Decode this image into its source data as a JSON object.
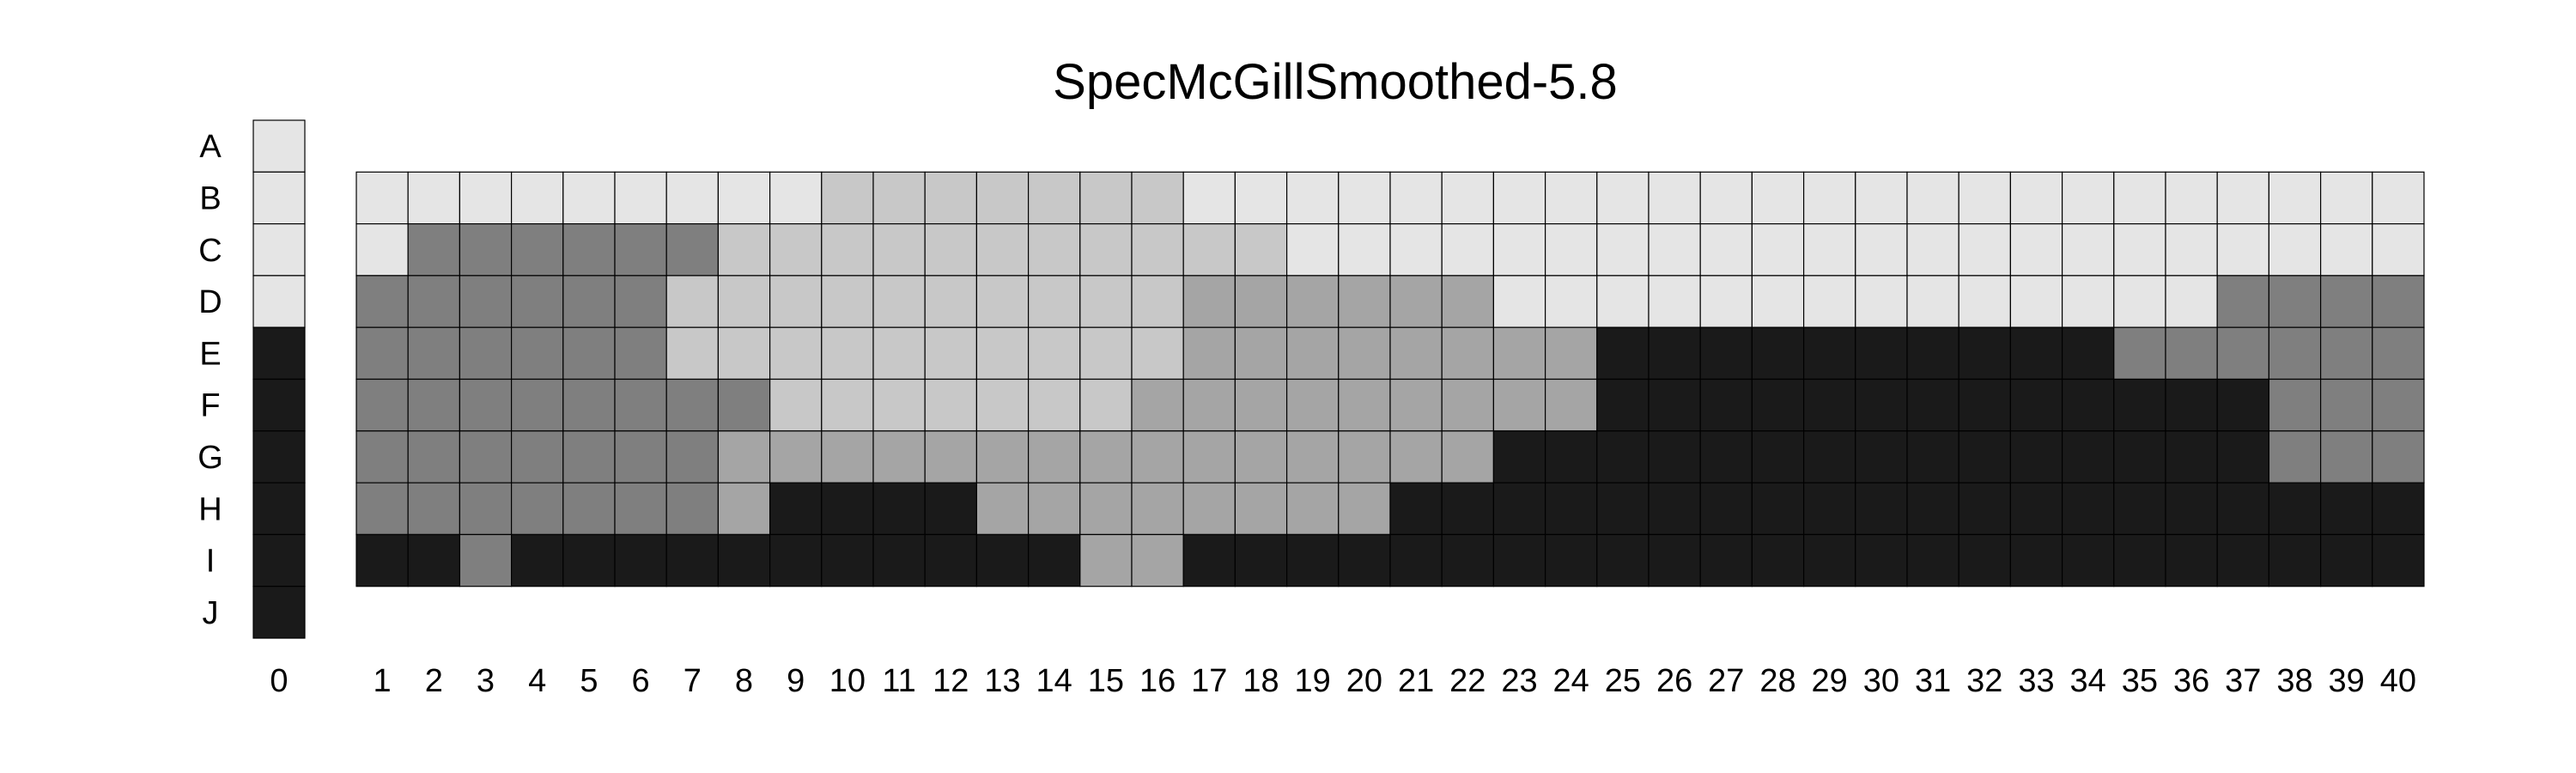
{
  "chart_data": {
    "type": "heatmap",
    "title": "SpecMcGillSmoothed-5.8",
    "rows": [
      "A",
      "B",
      "C",
      "D",
      "E",
      "F",
      "G",
      "H",
      "I",
      "J"
    ],
    "column_zero_label": "0",
    "columns": [
      "1",
      "2",
      "3",
      "4",
      "5",
      "6",
      "7",
      "8",
      "9",
      "10",
      "11",
      "12",
      "13",
      "14",
      "15",
      "16",
      "17",
      "18",
      "19",
      "20",
      "21",
      "22",
      "23",
      "24",
      "25",
      "26",
      "27",
      "28",
      "29",
      "30",
      "31",
      "32",
      "33",
      "34",
      "35",
      "36",
      "37",
      "38",
      "39",
      "40"
    ],
    "colors": {
      "0": "#e5e5e5",
      "1": "#c8c8c8",
      "2": "#a5a5a5",
      "3": "#7f7f7f",
      "4": "#1a1a1a"
    },
    "column_zero_values": [
      0,
      0,
      0,
      0,
      4,
      4,
      4,
      4,
      4,
      4
    ],
    "main_row_start": "B",
    "values": [
      [
        0,
        0,
        0,
        0,
        0,
        0,
        0,
        0,
        0,
        1,
        1,
        1,
        1,
        1,
        1,
        1,
        0,
        0,
        0,
        0,
        0,
        0,
        0,
        0,
        0,
        0,
        0,
        0,
        0,
        0,
        0,
        0,
        0,
        0,
        0,
        0,
        0,
        0,
        0,
        0
      ],
      [
        0,
        3,
        3,
        3,
        3,
        3,
        3,
        1,
        1,
        1,
        1,
        1,
        1,
        1,
        1,
        1,
        1,
        1,
        0,
        0,
        0,
        0,
        0,
        0,
        0,
        0,
        0,
        0,
        0,
        0,
        0,
        0,
        0,
        0,
        0,
        0,
        0,
        0,
        0,
        0
      ],
      [
        3,
        3,
        3,
        3,
        3,
        3,
        1,
        1,
        1,
        1,
        1,
        1,
        1,
        1,
        1,
        1,
        2,
        2,
        2,
        2,
        2,
        2,
        0,
        0,
        0,
        0,
        0,
        0,
        0,
        0,
        0,
        0,
        0,
        0,
        0,
        0,
        3,
        3,
        3,
        3
      ],
      [
        3,
        3,
        3,
        3,
        3,
        3,
        1,
        1,
        1,
        1,
        1,
        1,
        1,
        1,
        1,
        1,
        2,
        2,
        2,
        2,
        2,
        2,
        2,
        2,
        4,
        4,
        4,
        4,
        4,
        4,
        4,
        4,
        4,
        4,
        3,
        3,
        3,
        3,
        3,
        3
      ],
      [
        3,
        3,
        3,
        3,
        3,
        3,
        3,
        3,
        1,
        1,
        1,
        1,
        1,
        1,
        1,
        2,
        2,
        2,
        2,
        2,
        2,
        2,
        2,
        2,
        4,
        4,
        4,
        4,
        4,
        4,
        4,
        4,
        4,
        4,
        4,
        4,
        4,
        3,
        3,
        3
      ],
      [
        3,
        3,
        3,
        3,
        3,
        3,
        3,
        2,
        2,
        2,
        2,
        2,
        2,
        2,
        2,
        2,
        2,
        2,
        2,
        2,
        2,
        2,
        4,
        4,
        4,
        4,
        4,
        4,
        4,
        4,
        4,
        4,
        4,
        4,
        4,
        4,
        4,
        3,
        3,
        3
      ],
      [
        3,
        3,
        3,
        3,
        3,
        3,
        3,
        2,
        4,
        4,
        4,
        4,
        2,
        2,
        2,
        2,
        2,
        2,
        2,
        2,
        4,
        4,
        4,
        4,
        4,
        4,
        4,
        4,
        4,
        4,
        4,
        4,
        4,
        4,
        4,
        4,
        4,
        4,
        4,
        4
      ],
      [
        4,
        4,
        3,
        4,
        4,
        4,
        4,
        4,
        4,
        4,
        4,
        4,
        4,
        4,
        2,
        2,
        4,
        4,
        4,
        4,
        4,
        4,
        4,
        4,
        4,
        4,
        4,
        4,
        4,
        4,
        4,
        4,
        4,
        4,
        4,
        4,
        4,
        4,
        4,
        4
      ]
    ]
  }
}
